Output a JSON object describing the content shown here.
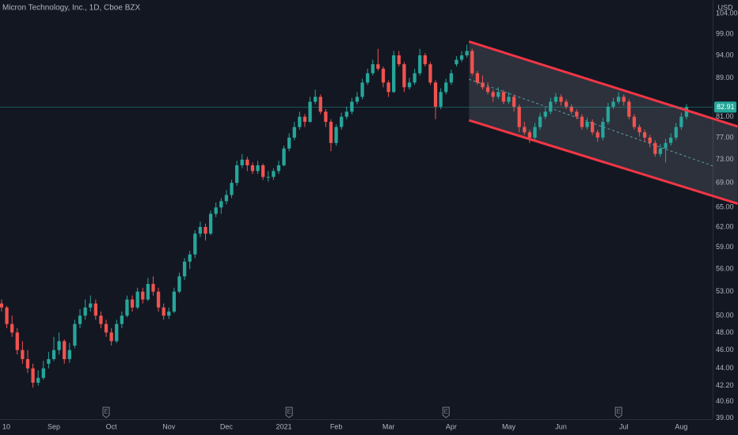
{
  "chart_data": {
    "type": "candlestick",
    "title": "Micron Technology, Inc., 1D, Cboe BZX",
    "currency": "USD",
    "up_color": "#26a69a",
    "down_color": "#ef5350",
    "log_scale": true,
    "grid": false,
    "xlim": [
      -0.3,
      136
    ],
    "ylim": [
      38.9,
      107.5
    ],
    "xticks": [
      {
        "value": 0,
        "label": "10"
      },
      {
        "value": 10,
        "label": "Sep"
      },
      {
        "value": 21,
        "label": "Oct"
      },
      {
        "value": 32,
        "label": "Nov"
      },
      {
        "value": 43,
        "label": "Dec"
      },
      {
        "value": 54,
        "label": "2021"
      },
      {
        "value": 64,
        "label": "Feb"
      },
      {
        "value": 74,
        "label": "Mar"
      },
      {
        "value": 86,
        "label": "Apr"
      },
      {
        "value": 97,
        "label": "May"
      },
      {
        "value": 107,
        "label": "Jun"
      },
      {
        "value": 119,
        "label": "Jul"
      },
      {
        "value": 130,
        "label": "Aug"
      }
    ],
    "yticks": [
      {
        "value": 39,
        "label": "39.00"
      },
      {
        "value": 40.6,
        "label": "40.60"
      },
      {
        "value": 42.2,
        "label": "42.20"
      },
      {
        "value": 44,
        "label": "44.00"
      },
      {
        "value": 46,
        "label": "46.00"
      },
      {
        "value": 48,
        "label": "48.00"
      },
      {
        "value": 50,
        "label": "50.00"
      },
      {
        "value": 53,
        "label": "53.00"
      },
      {
        "value": 56,
        "label": "56.00"
      },
      {
        "value": 59,
        "label": "59.00"
      },
      {
        "value": 62,
        "label": "62.00"
      },
      {
        "value": 65,
        "label": "65.00"
      },
      {
        "value": 69,
        "label": "69.00"
      },
      {
        "value": 73,
        "label": "73.00"
      },
      {
        "value": 77,
        "label": "77.00"
      },
      {
        "value": 81,
        "label": "81.00"
      },
      {
        "value": 89,
        "label": "89.00"
      },
      {
        "value": 94,
        "label": "94.00"
      },
      {
        "value": 99,
        "label": "99.00"
      },
      {
        "value": 104,
        "label": "104.00"
      }
    ],
    "last_price": 82.91,
    "earnings": {
      "label": "E",
      "x": [
        20,
        55,
        85,
        118
      ]
    },
    "channel": {
      "x": [
        89.4,
        140.8
      ],
      "upper": [
        97.2,
        79.1
      ],
      "lower": [
        80.3,
        65.6
      ],
      "mid_x": [
        89.4,
        136
      ],
      "mid": [
        88.7,
        71.9
      ],
      "color": "#f23645",
      "mid_color": "#5d9ea8"
    },
    "candles": [
      [
        51.5,
        52,
        50.5,
        51
      ],
      [
        51,
        51.2,
        48.5,
        49
      ],
      [
        49,
        50,
        47.5,
        48
      ],
      [
        48,
        48.5,
        45.5,
        46
      ],
      [
        46,
        47,
        44.5,
        45
      ],
      [
        45,
        46,
        43.5,
        44
      ],
      [
        44,
        44.5,
        42,
        42.5
      ],
      [
        42.5,
        43.8,
        42.2,
        43
      ],
      [
        43,
        44.8,
        42.8,
        44
      ],
      [
        44.5,
        45.8,
        44,
        45
      ],
      [
        45,
        47.5,
        44.8,
        46
      ],
      [
        46,
        48,
        45.5,
        47
      ],
      [
        47,
        47.2,
        44.5,
        45
      ],
      [
        45,
        46.8,
        44.6,
        46
      ],
      [
        46.5,
        49.5,
        46.2,
        49
      ],
      [
        49,
        50.8,
        48.5,
        50
      ],
      [
        50,
        52,
        49.5,
        51
      ],
      [
        51,
        52.5,
        50.5,
        51.5
      ],
      [
        51.5,
        52,
        49.5,
        50
      ],
      [
        50,
        50.5,
        48.5,
        49
      ],
      [
        49,
        49.5,
        47.5,
        48
      ],
      [
        48,
        48.5,
        46.5,
        47
      ],
      [
        47,
        49.5,
        46.8,
        49
      ],
      [
        49,
        50.5,
        48.5,
        50
      ],
      [
        50,
        52.5,
        49.8,
        52
      ],
      [
        52,
        52.5,
        50.5,
        51
      ],
      [
        51,
        53.5,
        50.8,
        53
      ],
      [
        53,
        53.5,
        51.5,
        52
      ],
      [
        52,
        54.8,
        51.8,
        54
      ],
      [
        54,
        55,
        52.5,
        53
      ],
      [
        53,
        53.5,
        50.5,
        51
      ],
      [
        51,
        51.5,
        49.5,
        50
      ],
      [
        50,
        51,
        49.6,
        50.5
      ],
      [
        50.5,
        53.5,
        50.3,
        53
      ],
      [
        53,
        55.5,
        52.8,
        55
      ],
      [
        55,
        57.5,
        54.5,
        57
      ],
      [
        57,
        58.5,
        56,
        58
      ],
      [
        58,
        61.5,
        57.5,
        61
      ],
      [
        61,
        62.8,
        60.5,
        62
      ],
      [
        62,
        62.5,
        60,
        61
      ],
      [
        61,
        64.5,
        60.8,
        64
      ],
      [
        64,
        65.8,
        63.5,
        65
      ],
      [
        65,
        66.5,
        64,
        66
      ],
      [
        66,
        67.8,
        65.5,
        67
      ],
      [
        67,
        69.5,
        66.5,
        69
      ],
      [
        69,
        72.8,
        68.5,
        72
      ],
      [
        72,
        74,
        71.5,
        73
      ],
      [
        73,
        73.5,
        71,
        72
      ],
      [
        72,
        72.5,
        70.5,
        71
      ],
      [
        71,
        72.8,
        70.5,
        72
      ],
      [
        72,
        72.3,
        69.5,
        70
      ],
      [
        70,
        71,
        69.2,
        70
      ],
      [
        70,
        71.5,
        69.5,
        71
      ],
      [
        71,
        72.8,
        70.5,
        72
      ],
      [
        72,
        75.5,
        71.8,
        75
      ],
      [
        75,
        77.8,
        74.5,
        77
      ],
      [
        77,
        80,
        76.5,
        79
      ],
      [
        79,
        82,
        78.5,
        81
      ],
      [
        81,
        81.5,
        79,
        80
      ],
      [
        80,
        85,
        79.8,
        84
      ],
      [
        84,
        86.5,
        83.5,
        85
      ],
      [
        85,
        85.5,
        81.5,
        82
      ],
      [
        82,
        82.5,
        79,
        80
      ],
      [
        80,
        80.5,
        74.5,
        76
      ],
      [
        76,
        79.5,
        75.5,
        79
      ],
      [
        79,
        81.8,
        78.5,
        81
      ],
      [
        81,
        83,
        80.5,
        82
      ],
      [
        82,
        84.8,
        81.5,
        84
      ],
      [
        84,
        86,
        83.5,
        85
      ],
      [
        85,
        88.8,
        84.5,
        88
      ],
      [
        88,
        91,
        87.5,
        90
      ],
      [
        90,
        93,
        89.5,
        92
      ],
      [
        92,
        95.5,
        90.5,
        91
      ],
      [
        91,
        91.5,
        87,
        88
      ],
      [
        88,
        88.5,
        85,
        86
      ],
      [
        86,
        95,
        85.8,
        94
      ],
      [
        94,
        95,
        91.5,
        92
      ],
      [
        92,
        92.5,
        86,
        87
      ],
      [
        87,
        89,
        86.5,
        88
      ],
      [
        88,
        91,
        87.5,
        90
      ],
      [
        90,
        95.5,
        89.5,
        94
      ],
      [
        94,
        94.5,
        91.5,
        92
      ],
      [
        92,
        92.5,
        87.5,
        88
      ],
      [
        88,
        88.5,
        80.5,
        83
      ],
      [
        83,
        86.8,
        82.5,
        86
      ],
      [
        86,
        88.8,
        85.5,
        88
      ],
      [
        88,
        90.8,
        87.5,
        90
      ],
      [
        92,
        93.8,
        91.5,
        93
      ],
      [
        93,
        95,
        92.5,
        94
      ],
      [
        94,
        96.5,
        93.5,
        95
      ],
      [
        95,
        95.5,
        89.5,
        90
      ],
      [
        90,
        90.5,
        87.5,
        88
      ],
      [
        88,
        89.5,
        86.5,
        87
      ],
      [
        87,
        88,
        85.5,
        86
      ],
      [
        86,
        86.5,
        84,
        85
      ],
      [
        85,
        87,
        84.5,
        86
      ],
      [
        86,
        86.5,
        83.5,
        84
      ],
      [
        84,
        86,
        83.5,
        85
      ],
      [
        85,
        85.5,
        82,
        83
      ],
      [
        83,
        83.5,
        78,
        79
      ],
      [
        79,
        80,
        77.5,
        78
      ],
      [
        78,
        78.5,
        76,
        77
      ],
      [
        77,
        79.8,
        76.5,
        79
      ],
      [
        79,
        81.8,
        78.5,
        81
      ],
      [
        81,
        82.8,
        80.5,
        82
      ],
      [
        82,
        84.8,
        81.5,
        84
      ],
      [
        84,
        85.8,
        83.5,
        85
      ],
      [
        85,
        85.5,
        83.2,
        84
      ],
      [
        84,
        84.5,
        82.5,
        83
      ],
      [
        83,
        83.5,
        81.5,
        82
      ],
      [
        82,
        82.5,
        80.5,
        81
      ],
      [
        81,
        81.5,
        78.5,
        79
      ],
      [
        79,
        80.8,
        78.5,
        80
      ],
      [
        80,
        80.5,
        77.5,
        78
      ],
      [
        78,
        78.5,
        76.2,
        77
      ],
      [
        77,
        80.8,
        76.5,
        80
      ],
      [
        80,
        83.8,
        79.5,
        83
      ],
      [
        83,
        84.8,
        82.5,
        84
      ],
      [
        84,
        86,
        83.5,
        85
      ],
      [
        85,
        85.5,
        83.2,
        84
      ],
      [
        84,
        84.5,
        80.5,
        81
      ],
      [
        81,
        81.5,
        78.5,
        79
      ],
      [
        79,
        79.5,
        77.2,
        78
      ],
      [
        78,
        78.5,
        76.2,
        77
      ],
      [
        77,
        77.5,
        75.2,
        76
      ],
      [
        76,
        76.5,
        73.5,
        74
      ],
      [
        74,
        75.8,
        73.5,
        75
      ],
      [
        75,
        76.8,
        72.5,
        76
      ],
      [
        76,
        77.8,
        75.5,
        77
      ],
      [
        77,
        79.8,
        76.5,
        79
      ],
      [
        79,
        81.8,
        78.5,
        81
      ],
      [
        81,
        83.5,
        80.5,
        82.91
      ]
    ]
  }
}
